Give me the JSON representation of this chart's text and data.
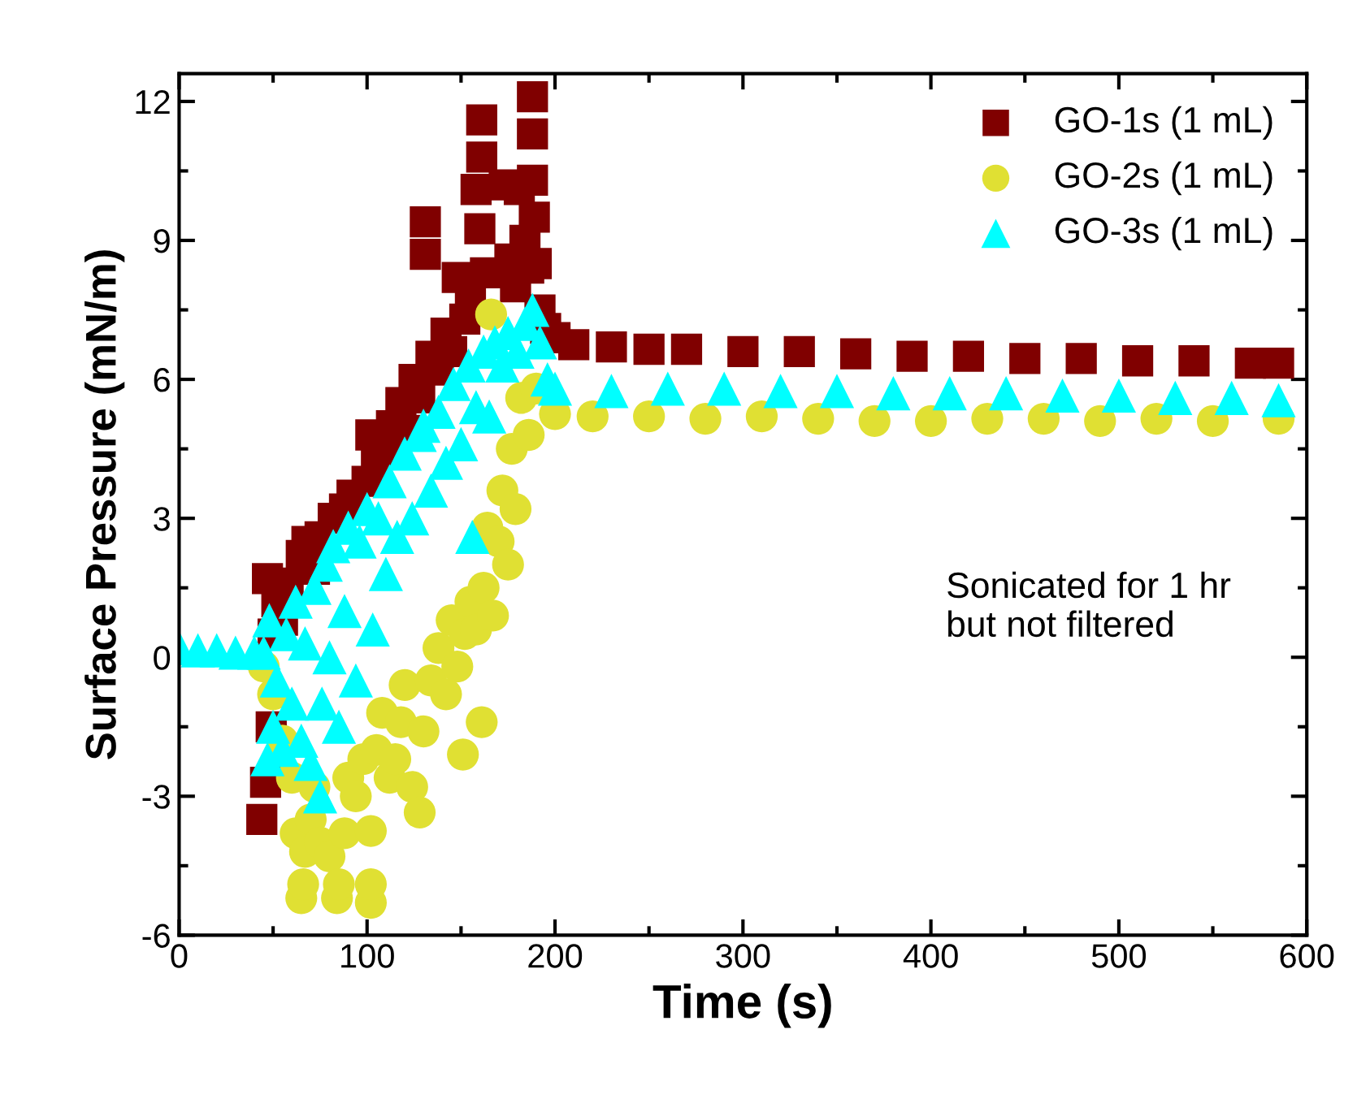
{
  "chart_data": {
    "type": "scatter",
    "xlabel": "Time (s)",
    "ylabel": "Surface Pressure (mN/m)",
    "xlim": [
      0,
      600
    ],
    "xticks": [
      0,
      100,
      200,
      300,
      400,
      500,
      600
    ],
    "ylim": [
      -6,
      12.6
    ],
    "yticks": [
      -6,
      -3,
      0,
      3,
      6,
      9,
      12
    ],
    "grid": false,
    "legend": "top right",
    "annotations": [
      "Sonicated for 1 hr\nbut not filtered"
    ],
    "series": [
      {
        "name": "GO-1s (1 mL)",
        "color": "#800000",
        "marker": "square",
        "x": [
          44,
          46,
          47,
          49,
          50,
          52,
          55,
          58,
          65,
          68,
          72,
          75,
          82,
          88,
          92,
          100,
          102,
          105,
          110,
          113,
          118,
          121,
          125,
          128,
          131,
          131,
          134,
          138,
          142,
          145,
          148,
          152,
          155,
          158,
          160,
          161,
          161,
          163,
          173,
          176,
          179,
          181,
          184,
          186,
          188,
          188,
          188,
          189,
          190,
          192,
          195,
          200,
          210,
          230,
          250,
          270,
          300,
          330,
          360,
          390,
          420,
          450,
          480,
          510,
          540,
          570,
          585
        ],
        "values": [
          -3.5,
          -2.7,
          1.7,
          -1.5,
          0.5,
          1.2,
          0.8,
          1.6,
          2.2,
          2.5,
          1.9,
          2.6,
          3.0,
          3.2,
          3.5,
          3.8,
          4.8,
          4.2,
          4.5,
          5.0,
          5.5,
          4.9,
          6.0,
          5.6,
          9.4,
          8.7,
          6.5,
          6.2,
          7.0,
          6.6,
          8.2,
          7.3,
          7.8,
          10.1,
          9.25,
          11.6,
          10.8,
          8.3,
          10.2,
          8.6,
          8.0,
          10.1,
          9.0,
          8.4,
          12.1,
          11.3,
          10.3,
          9.5,
          8.5,
          7.5,
          7.1,
          6.9,
          6.75,
          6.7,
          6.65,
          6.65,
          6.6,
          6.6,
          6.55,
          6.5,
          6.5,
          6.45,
          6.45,
          6.4,
          6.4,
          6.35,
          6.35
        ]
      },
      {
        "name": "GO-2s (1 mL)",
        "color": "#e0e033",
        "marker": "circle",
        "x": [
          45,
          50,
          55,
          60,
          62,
          65,
          66,
          67,
          70,
          72,
          75,
          80,
          84,
          85,
          88,
          90,
          94,
          98,
          102,
          102,
          102,
          105,
          108,
          112,
          115,
          118,
          120,
          124,
          128,
          130,
          134,
          138,
          142,
          145,
          148,
          151,
          152,
          155,
          158,
          161,
          162,
          164,
          166,
          167,
          170,
          172,
          175,
          177,
          179,
          182,
          186,
          190,
          200,
          220,
          250,
          280,
          310,
          340,
          370,
          400,
          430,
          460,
          490,
          520,
          550,
          585
        ],
        "values": [
          -0.2,
          -0.8,
          -1.8,
          -2.6,
          -3.8,
          -5.2,
          -4.9,
          -4.2,
          -3.5,
          -2.8,
          -4.0,
          -4.3,
          -5.2,
          -4.9,
          -3.8,
          -2.6,
          -3.0,
          -2.2,
          -5.3,
          -4.9,
          -3.75,
          -2.0,
          -1.2,
          -2.6,
          -2.2,
          -1.4,
          -0.6,
          -2.8,
          -3.35,
          -1.6,
          -0.5,
          0.2,
          -0.8,
          0.8,
          -0.2,
          -2.1,
          0.5,
          1.2,
          0.6,
          -1.4,
          1.5,
          2.8,
          7.4,
          0.9,
          2.5,
          3.6,
          2.0,
          4.5,
          3.2,
          5.6,
          4.8,
          5.8,
          5.25,
          5.2,
          5.2,
          5.15,
          5.2,
          5.15,
          5.1,
          5.1,
          5.15,
          5.15,
          5.1,
          5.15,
          5.1,
          5.15
        ]
      },
      {
        "name": "GO-3s (1 mL)",
        "color": "#00ffff",
        "marker": "triangle",
        "x": [
          0,
          10,
          20,
          30,
          40,
          45,
          47,
          48,
          50,
          52,
          55,
          57,
          60,
          62,
          65,
          67,
          70,
          72,
          75,
          76,
          78,
          80,
          82,
          85,
          88,
          90,
          94,
          96,
          100,
          103,
          106,
          110,
          112,
          116,
          120,
          124,
          128,
          130,
          134,
          138,
          142,
          146,
          150,
          154,
          156,
          158,
          162,
          165,
          168,
          172,
          175,
          180,
          184,
          188,
          192,
          196,
          200,
          230,
          260,
          290,
          320,
          350,
          380,
          410,
          440,
          470,
          500,
          530,
          560,
          585
        ],
        "values": [
          0.2,
          0.15,
          0.15,
          0.1,
          0.1,
          0.1,
          -2.2,
          0.8,
          -1.5,
          -0.5,
          -2.0,
          0.5,
          -1.0,
          1.2,
          -1.8,
          0.3,
          -2.3,
          1.5,
          -3.0,
          -1.0,
          2.0,
          0.0,
          2.4,
          -1.5,
          1.0,
          2.8,
          -0.5,
          2.5,
          3.2,
          0.6,
          3.0,
          1.8,
          3.8,
          2.6,
          4.4,
          3.0,
          4.8,
          5.0,
          3.6,
          5.3,
          4.2,
          5.9,
          4.6,
          6.3,
          2.6,
          5.4,
          6.6,
          5.2,
          6.8,
          6.3,
          7.0,
          6.6,
          7.2,
          7.5,
          6.8,
          6.0,
          5.8,
          5.75,
          5.8,
          5.8,
          5.75,
          5.75,
          5.7,
          5.7,
          5.7,
          5.65,
          5.65,
          5.6,
          5.6,
          5.55
        ]
      }
    ]
  }
}
